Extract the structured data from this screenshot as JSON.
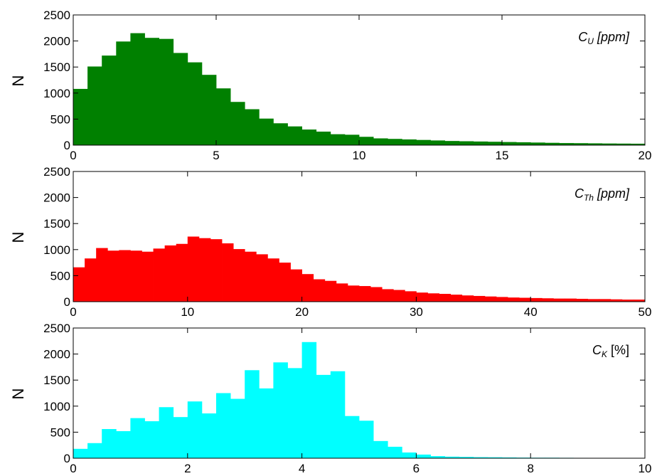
{
  "chart_data": [
    {
      "type": "bar",
      "ylabel": "N",
      "annotation": {
        "main": "C",
        "sub": "U",
        "unit": "[ppm]"
      },
      "color": "#008000",
      "xlim": [
        0,
        20
      ],
      "ylim": [
        0,
        2500
      ],
      "xticks": [
        "0",
        "5",
        "10",
        "15",
        "20"
      ],
      "yticks": [
        "0",
        "500",
        "1000",
        "1500",
        "2000",
        "2500"
      ],
      "bin_width": 0.5,
      "x": [
        0,
        0.5,
        1,
        1.5,
        2,
        2.5,
        3,
        3.5,
        4,
        4.5,
        5,
        5.5,
        6,
        6.5,
        7,
        7.5,
        8,
        8.5,
        9,
        9.5,
        10,
        10.5,
        11,
        11.5,
        12,
        12.5,
        13,
        13.5,
        14,
        14.5,
        15,
        15.5,
        16,
        16.5,
        17,
        17.5,
        18,
        18.5,
        19,
        19.5
      ],
      "values": [
        1080,
        1510,
        1720,
        1990,
        2150,
        2060,
        2040,
        1770,
        1590,
        1350,
        1090,
        830,
        690,
        510,
        420,
        360,
        300,
        260,
        210,
        200,
        160,
        130,
        120,
        110,
        100,
        90,
        80,
        75,
        70,
        65,
        60,
        55,
        50,
        45,
        40,
        38,
        35,
        32,
        30,
        28
      ]
    },
    {
      "type": "bar",
      "ylabel": "N",
      "annotation": {
        "main": "C",
        "sub": "Th",
        "unit": "[ppm]"
      },
      "color": "#ff0000",
      "xlim": [
        0,
        50
      ],
      "ylim": [
        0,
        2500
      ],
      "xticks": [
        "0",
        "10",
        "20",
        "30",
        "40",
        "50"
      ],
      "yticks": [
        "0",
        "500",
        "1000",
        "1500",
        "2000",
        "2500"
      ],
      "bin_width": 1,
      "x": [
        0,
        1,
        2,
        3,
        4,
        5,
        6,
        7,
        8,
        9,
        10,
        11,
        12,
        13,
        14,
        15,
        16,
        17,
        18,
        19,
        20,
        21,
        22,
        23,
        24,
        25,
        26,
        27,
        28,
        29,
        30,
        31,
        32,
        33,
        34,
        35,
        36,
        37,
        38,
        39,
        40,
        41,
        42,
        43,
        44,
        45,
        46,
        47,
        48,
        49
      ],
      "values": [
        660,
        830,
        1030,
        980,
        990,
        980,
        960,
        1020,
        1080,
        1110,
        1250,
        1220,
        1200,
        1120,
        1010,
        960,
        910,
        830,
        750,
        620,
        530,
        430,
        400,
        350,
        310,
        300,
        280,
        240,
        225,
        200,
        175,
        160,
        150,
        135,
        120,
        110,
        100,
        90,
        80,
        75,
        70,
        65,
        60,
        60,
        55,
        50,
        50,
        45,
        40,
        40
      ]
    },
    {
      "type": "bar",
      "ylabel": "N",
      "annotation": {
        "main": "C",
        "sub": "K",
        "unit": "[%]"
      },
      "color": "#00ffff",
      "xlim": [
        0,
        10
      ],
      "ylim": [
        0,
        2500
      ],
      "xticks": [
        "0",
        "2",
        "4",
        "6",
        "8",
        "10"
      ],
      "yticks": [
        "0",
        "500",
        "1000",
        "1500",
        "2000",
        "2500"
      ],
      "bin_width": 0.25,
      "x": [
        0,
        0.25,
        0.5,
        0.75,
        1,
        1.25,
        1.5,
        1.75,
        2,
        2.25,
        2.5,
        2.75,
        3,
        3.25,
        3.5,
        3.75,
        4,
        4.25,
        4.5,
        4.75,
        5,
        5.25,
        5.5,
        5.75,
        6,
        6.25,
        6.5,
        6.75,
        7,
        7.25,
        7.5,
        7.75,
        8,
        8.25,
        8.5,
        8.75,
        9,
        9.25,
        9.5,
        9.75
      ],
      "values": [
        180,
        290,
        560,
        520,
        770,
        710,
        980,
        790,
        1090,
        860,
        1250,
        1140,
        1690,
        1340,
        1840,
        1730,
        2230,
        1600,
        1670,
        810,
        720,
        330,
        220,
        110,
        70,
        40,
        30,
        25,
        20,
        18,
        15,
        12,
        10,
        10,
        8,
        7,
        6,
        5,
        5,
        5
      ]
    }
  ]
}
